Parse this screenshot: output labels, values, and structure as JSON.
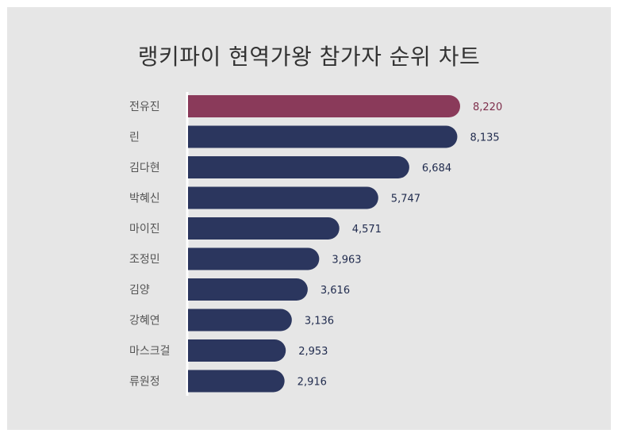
{
  "chart_data": {
    "type": "bar",
    "orientation": "horizontal",
    "title": "랭키파이 현역가왕 참가자 순위 차트",
    "categories": [
      "전유진",
      "린",
      "김다현",
      "박혜신",
      "마이진",
      "조정민",
      "김양",
      "강혜연",
      "마스크걸",
      "류원정"
    ],
    "values": [
      8220,
      8135,
      6684,
      5747,
      4571,
      3963,
      3616,
      3136,
      2953,
      2916
    ],
    "value_labels": [
      "8,220",
      "8,135",
      "6,684",
      "5,747",
      "4,571",
      "3,963",
      "3,616",
      "3,136",
      "2,953",
      "2,916"
    ],
    "highlight_index": 0,
    "colors": {
      "highlight": "#8a3a5a",
      "bar": "#2b365e",
      "highlight_label": "#7e2f4c",
      "label": "#1f2a4d"
    },
    "grid": false,
    "legend": "none"
  }
}
